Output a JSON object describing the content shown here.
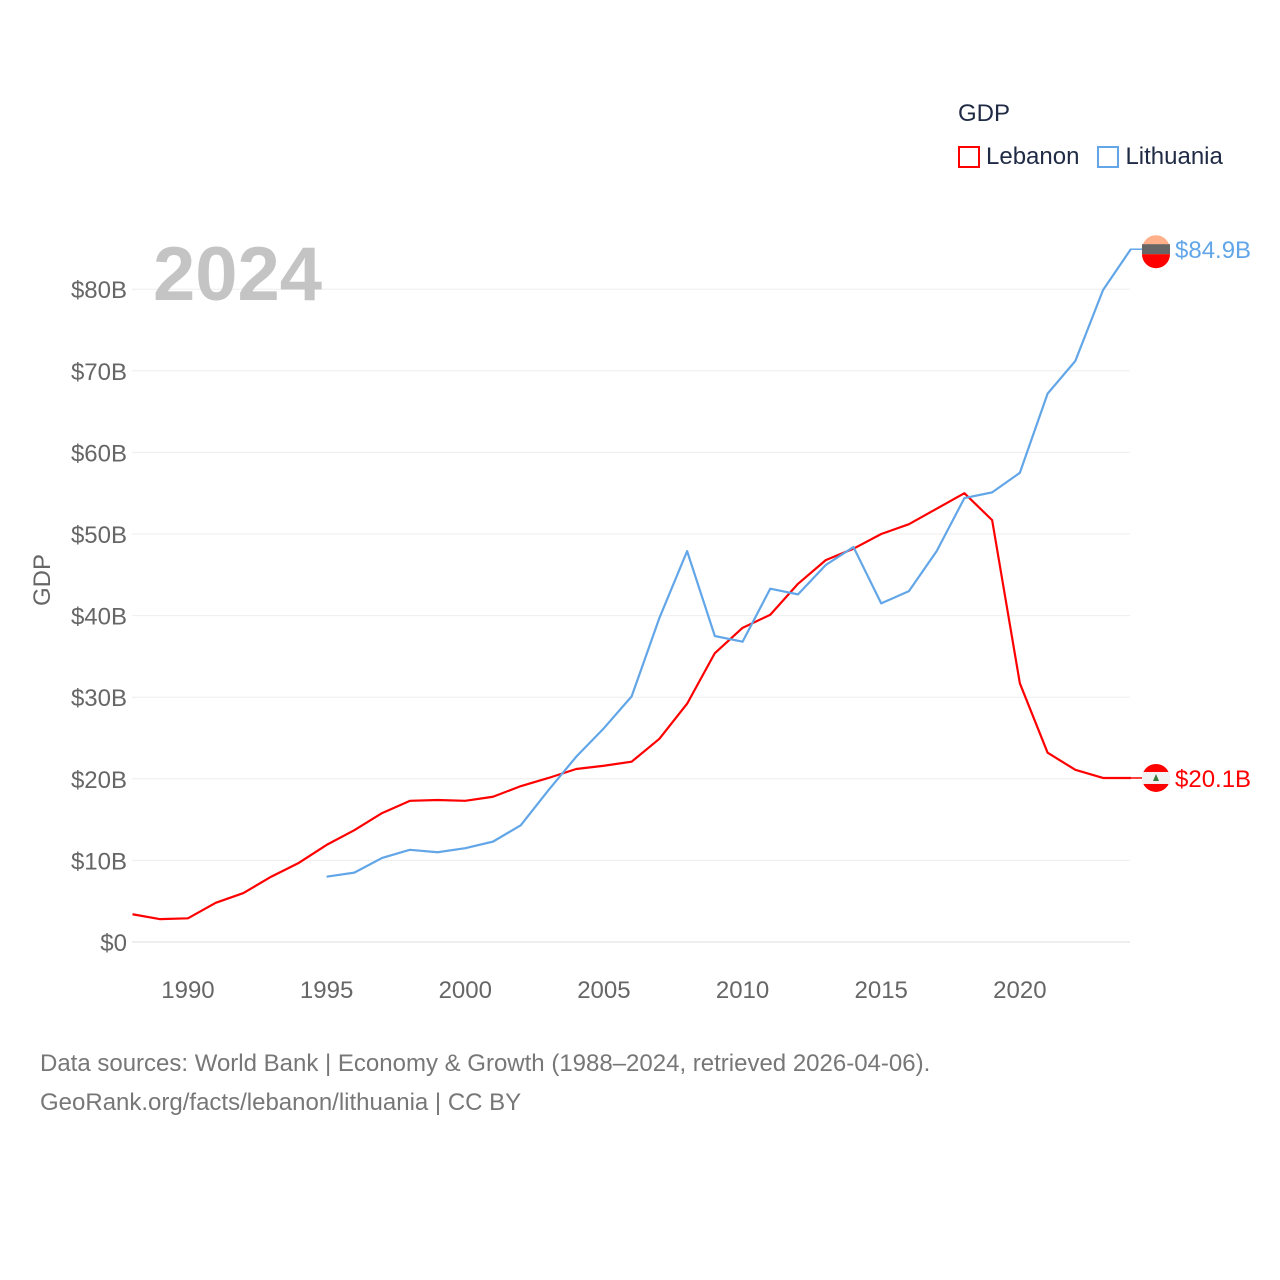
{
  "chart_data": {
    "type": "line",
    "year_label": "2024",
    "ylabel": "GDP",
    "xlabel": "",
    "ylim": [
      0,
      84.9
    ],
    "xlim": [
      1988,
      2024
    ],
    "x_ticks": [
      1990,
      1995,
      2000,
      2005,
      2010,
      2015,
      2020
    ],
    "x_tick_labels": [
      "1990",
      "1995",
      "2000",
      "2005",
      "2010",
      "2015",
      "2020"
    ],
    "y_ticks": [
      0,
      10,
      20,
      30,
      40,
      50,
      60,
      70,
      80
    ],
    "y_tick_labels": [
      "$0",
      "$10B",
      "$20B",
      "$30B",
      "$40B",
      "$50B",
      "$60B",
      "$70B",
      "$80B"
    ],
    "grid": true,
    "legend": {
      "title": "GDP",
      "placement": "top-right"
    },
    "units": "billion USD",
    "series": [
      {
        "name": "Lebanon",
        "color": "#ff0000",
        "end_label": "$20.1B",
        "x": [
          1988,
          1989,
          1990,
          1991,
          1992,
          1993,
          1994,
          1995,
          1996,
          1997,
          1998,
          1999,
          2000,
          2001,
          2002,
          2003,
          2004,
          2005,
          2006,
          2007,
          2008,
          2009,
          2010,
          2011,
          2012,
          2013,
          2014,
          2015,
          2016,
          2017,
          2018,
          2019,
          2020,
          2021,
          2022,
          2023,
          2024
        ],
        "values": [
          3.4,
          2.8,
          2.9,
          4.8,
          6.0,
          8.0,
          9.7,
          11.9,
          13.7,
          15.8,
          17.3,
          17.4,
          17.3,
          17.8,
          19.1,
          20.1,
          21.2,
          21.6,
          22.1,
          24.9,
          29.2,
          35.4,
          38.5,
          40.1,
          43.9,
          46.8,
          48.2,
          50.0,
          51.2,
          53.1,
          55.0,
          51.7,
          31.7,
          23.2,
          21.1,
          20.1,
          20.1
        ]
      },
      {
        "name": "Lithuania",
        "color": "#62a6e8",
        "end_label": "$84.9B",
        "x": [
          1995,
          1996,
          1997,
          1998,
          1999,
          2000,
          2001,
          2002,
          2003,
          2004,
          2005,
          2006,
          2007,
          2008,
          2009,
          2010,
          2011,
          2012,
          2013,
          2014,
          2015,
          2016,
          2017,
          2018,
          2019,
          2020,
          2021,
          2022,
          2023,
          2024
        ],
        "values": [
          8.0,
          8.5,
          10.3,
          11.3,
          11.0,
          11.5,
          12.3,
          14.3,
          18.6,
          22.7,
          26.2,
          30.1,
          39.7,
          47.9,
          37.5,
          36.8,
          43.3,
          42.6,
          46.2,
          48.4,
          41.5,
          43.0,
          47.9,
          54.4,
          55.1,
          57.5,
          67.2,
          71.2,
          79.9,
          84.9
        ]
      }
    ]
  },
  "footer": {
    "line1": "Data sources: World Bank | Economy & Growth (1988–2024, retrieved 2026-04-06).",
    "line2": "GeoRank.org/facts/lebanon/lithuania | CC BY"
  }
}
